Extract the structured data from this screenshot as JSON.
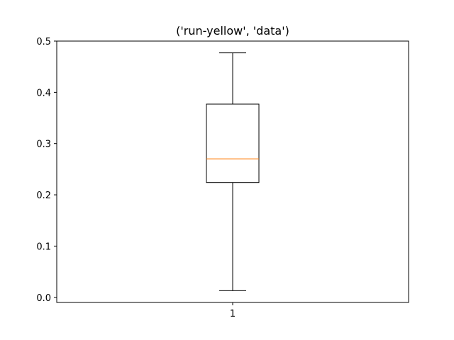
{
  "chart_data": {
    "type": "boxplot",
    "title": "('run-yellow', 'data')",
    "xlabel": "",
    "ylabel": "",
    "categories": [
      "1"
    ],
    "ylim": [
      -0.01,
      0.5
    ],
    "yticks": [
      0.0,
      0.1,
      0.2,
      0.3,
      0.4,
      0.5
    ],
    "ytick_labels": [
      "0.0",
      "0.1",
      "0.2",
      "0.3",
      "0.4",
      "0.5"
    ],
    "boxes": [
      {
        "category": "1",
        "whisker_low": 0.013,
        "q1": 0.224,
        "median": 0.27,
        "q3": 0.377,
        "whisker_high": 0.477
      }
    ],
    "grid": false,
    "colors": {
      "box": "#000000",
      "median": "#ff7f0e",
      "axes": "#000000",
      "background": "#ffffff"
    }
  }
}
